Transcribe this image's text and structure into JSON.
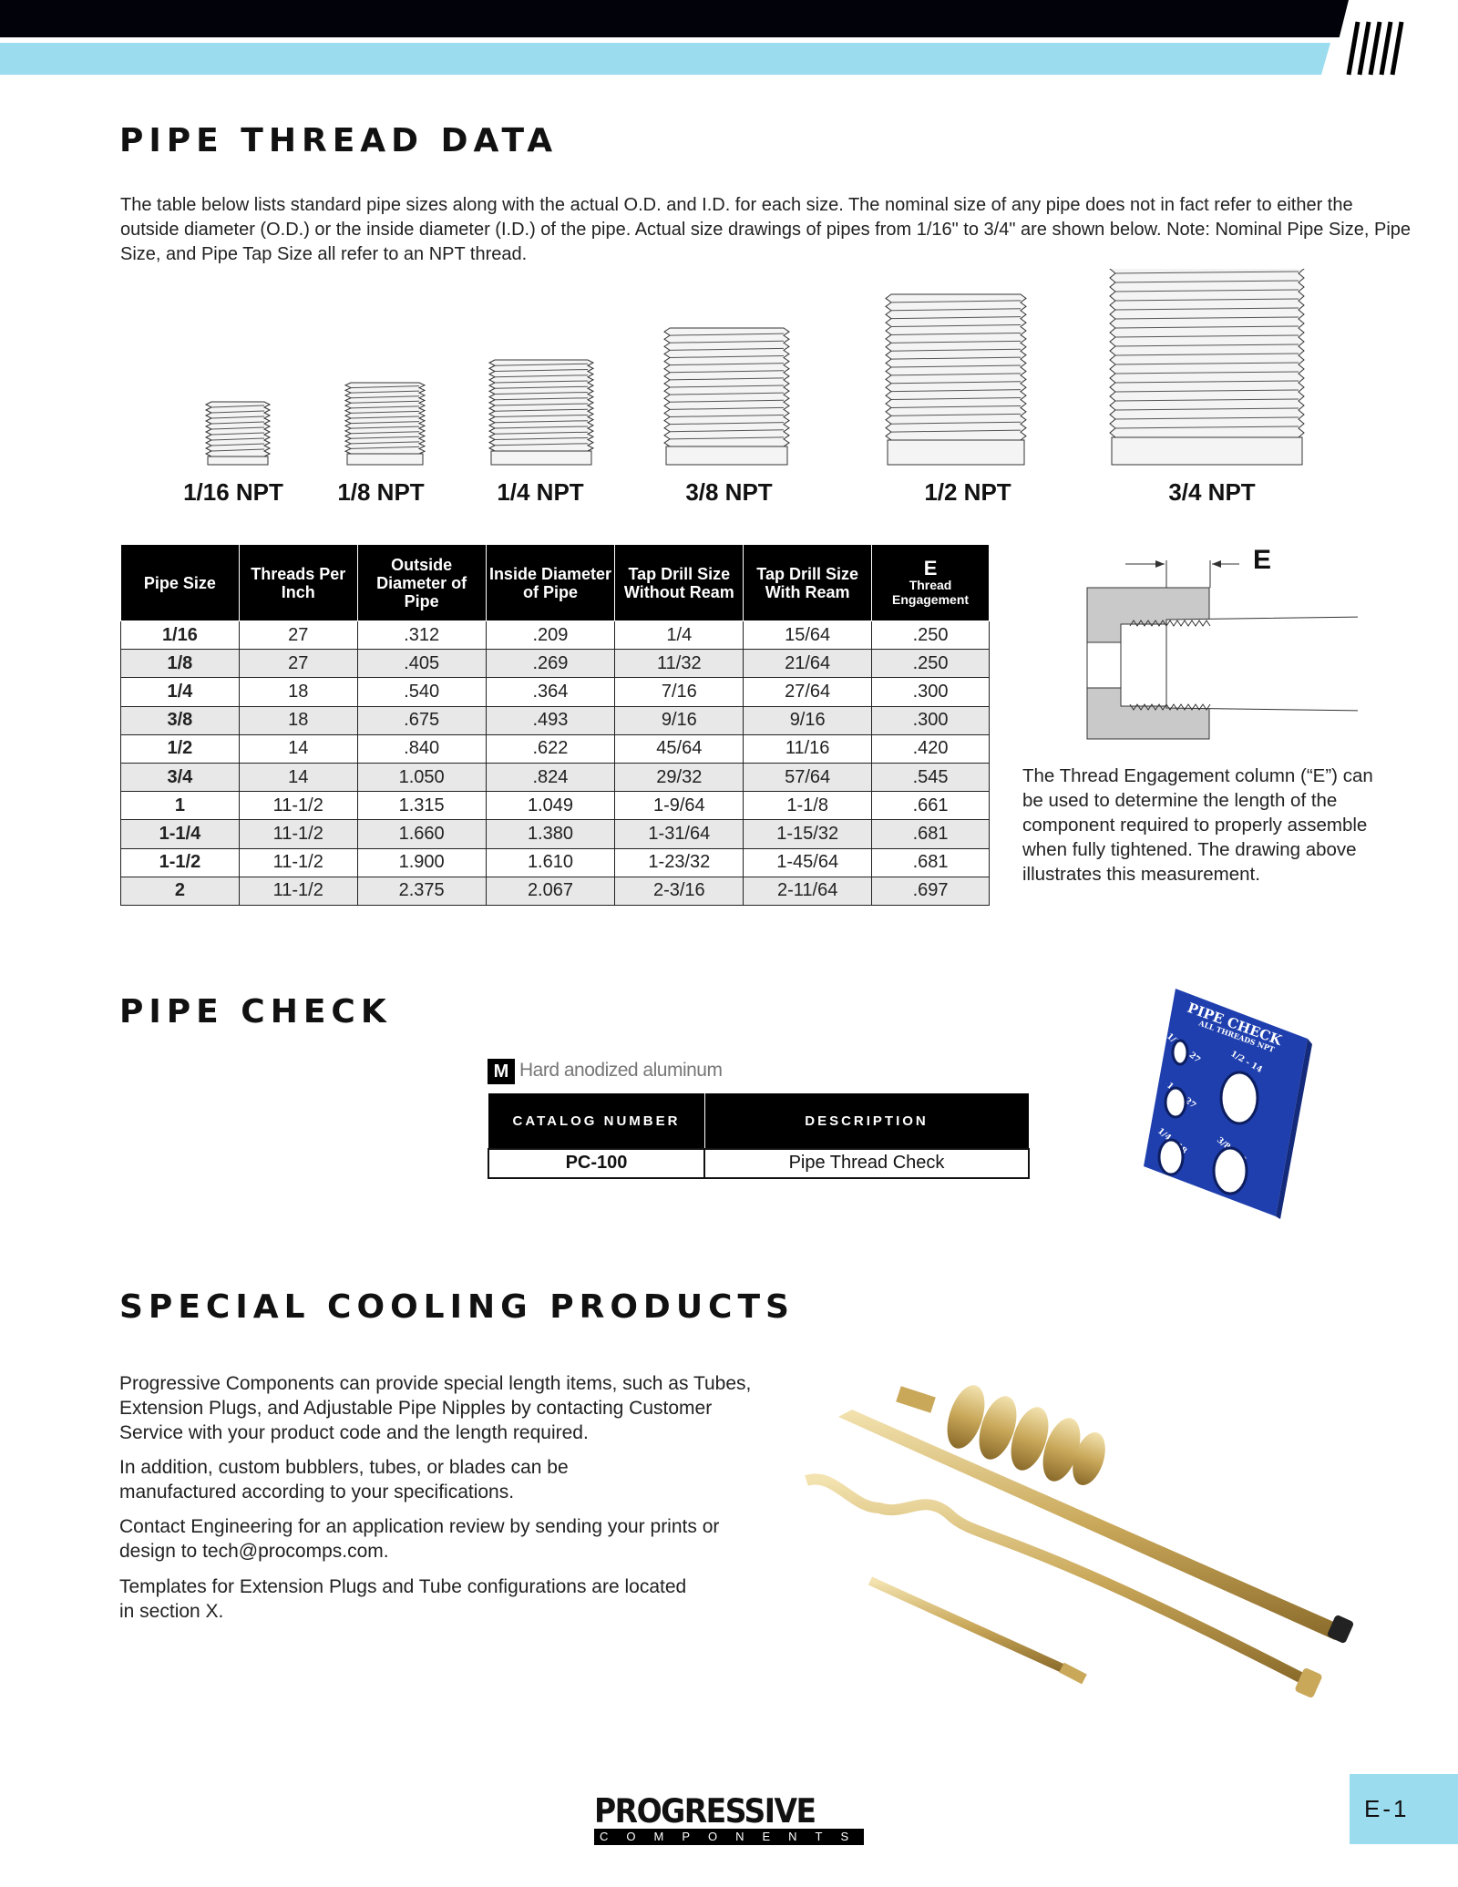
{
  "header": {
    "colors": {
      "black": "#02030a",
      "accent": "#9bdcef"
    },
    "icon": "stripes-logo-icon"
  },
  "section1": {
    "title": "PIPE THREAD DATA",
    "intro": "The table below lists standard pipe sizes along with the actual O.D. and I.D. for each size. The nominal size of any pipe does not in fact refer to either the outside diameter (O.D.) or the inside diameter (I.D.) of the pipe. Actual size drawings of pipes from 1/16\" to 3/4\" are shown below. Note: Nominal Pipe Size, Pipe Size, and Pipe Tap Size all refer to an NPT thread.",
    "pipes": [
      "1/16 NPT",
      "1/8 NPT",
      "1/4 NPT",
      "3/8 NPT",
      "1/2 NPT",
      "3/4 NPT"
    ],
    "table": {
      "headers": [
        "Pipe Size",
        "Threads Per Inch",
        "Outside Diameter of Pipe",
        "Inside Diameter of Pipe",
        "Tap Drill Size Without Ream",
        "Tap Drill Size With Ream"
      ],
      "e_header": "E",
      "e_sub": "Thread Engagement",
      "rows": [
        [
          "1/16",
          "27",
          ".312",
          ".209",
          "1/4",
          "15/64",
          ".250"
        ],
        [
          "1/8",
          "27",
          ".405",
          ".269",
          "11/32",
          "21/64",
          ".250"
        ],
        [
          "1/4",
          "18",
          ".540",
          ".364",
          "7/16",
          "27/64",
          ".300"
        ],
        [
          "3/8",
          "18",
          ".675",
          ".493",
          "9/16",
          "9/16",
          ".300"
        ],
        [
          "1/2",
          "14",
          ".840",
          ".622",
          "45/64",
          "11/16",
          ".420"
        ],
        [
          "3/4",
          "14",
          "1.050",
          ".824",
          "29/32",
          "57/64",
          ".545"
        ],
        [
          "1",
          "11-1/2",
          "1.315",
          "1.049",
          "1-9/64",
          "1-1/8",
          ".661"
        ],
        [
          "1-1/4",
          "11-1/2",
          "1.660",
          "1.380",
          "1-31/64",
          "1-15/32",
          ".681"
        ],
        [
          "1-1/2",
          "11-1/2",
          "1.900",
          "1.610",
          "1-23/32",
          "1-45/64",
          ".681"
        ],
        [
          "2",
          "11-1/2",
          "2.375",
          "2.067",
          "2-3/16",
          "2-11/64",
          ".697"
        ]
      ]
    },
    "diagram_label": "E",
    "side_note": "The Thread Engagement column (“E”) can be used to determine the length of the component required to properly assemble when fully tightened. The drawing above illustrates this measurement."
  },
  "section2": {
    "title": "PIPE CHECK",
    "material_badge": "M",
    "material": "Hard anodized aluminum",
    "headers": [
      "CATALOG NUMBER",
      "DESCRIPTION"
    ],
    "row": [
      "PC-100",
      "Pipe Thread Check"
    ],
    "product": {
      "title": "PIPE CHECK",
      "subtitle": "ALL THREADS NPT",
      "holes": [
        "1/16 - 27",
        "1/2 - 14",
        "1/8 - 27",
        "1/4 - 18",
        "3/8 - 18"
      ],
      "color": "#1f3fae"
    }
  },
  "section3": {
    "title": "SPECIAL COOLING PRODUCTS",
    "paragraphs": [
      "Progressive Components can provide special length items, such as Tubes, Extension Plugs, and Adjustable Pipe Nipples by contacting Customer Service with your product code and the length required.",
      "In addition, custom bubblers, tubes, or blades can be manufactured according to your specifications.",
      "Contact Engineering for an application review by sending your prints or design to tech@procomps.com.",
      "Templates for Extension Plugs and Tube configurations are located in section X."
    ]
  },
  "footer": {
    "logo_top": "PROGRESSIVE",
    "logo_bottom": "COMPONENTS",
    "page": "E-1"
  }
}
